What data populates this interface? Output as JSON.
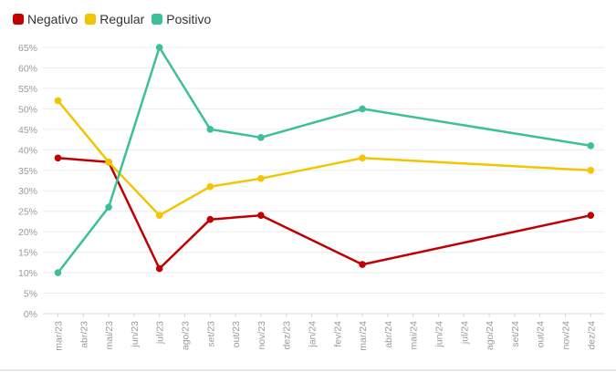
{
  "chart_data": {
    "type": "line",
    "x_ticks": [
      "mar/23",
      "abr/23",
      "mai/23",
      "jun/23",
      "jul/23",
      "ago/23",
      "set/23",
      "out/23",
      "nov/23",
      "dez/23",
      "jan/24",
      "fev/24",
      "mar/24",
      "abr/24",
      "mai/24",
      "jun/24",
      "jul/24",
      "ago/24",
      "set/24",
      "out/24",
      "nov/24",
      "dez/24"
    ],
    "y_ticks": [
      "0%",
      "5%",
      "10%",
      "15%",
      "20%",
      "25%",
      "30%",
      "35%",
      "40%",
      "45%",
      "50%",
      "55%",
      "60%",
      "65%"
    ],
    "ylim": [
      0,
      65
    ],
    "grid": true,
    "legend_position": "top-left",
    "series": [
      {
        "name": "Negativo",
        "color": "#c00000",
        "points": [
          {
            "x": "mar/23",
            "y": 38
          },
          {
            "x": "mai/23",
            "y": 37
          },
          {
            "x": "jul/23",
            "y": 11
          },
          {
            "x": "set/23",
            "y": 23
          },
          {
            "x": "nov/23",
            "y": 24
          },
          {
            "x": "mar/24",
            "y": 12
          },
          {
            "x": "dez/24",
            "y": 24
          }
        ]
      },
      {
        "name": "Regular",
        "color": "#f5c400",
        "points": [
          {
            "x": "mar/23",
            "y": 52
          },
          {
            "x": "mai/23",
            "y": 37
          },
          {
            "x": "jul/23",
            "y": 24
          },
          {
            "x": "set/23",
            "y": 31
          },
          {
            "x": "nov/23",
            "y": 33
          },
          {
            "x": "mar/24",
            "y": 38
          },
          {
            "x": "dez/24",
            "y": 35
          }
        ]
      },
      {
        "name": "Positivo",
        "color": "#3dbf9a",
        "points": [
          {
            "x": "mar/23",
            "y": 10
          },
          {
            "x": "mai/23",
            "y": 26
          },
          {
            "x": "jul/23",
            "y": 65
          },
          {
            "x": "set/23",
            "y": 45
          },
          {
            "x": "nov/23",
            "y": 43
          },
          {
            "x": "mar/24",
            "y": 50
          },
          {
            "x": "dez/24",
            "y": 41
          }
        ]
      }
    ]
  }
}
